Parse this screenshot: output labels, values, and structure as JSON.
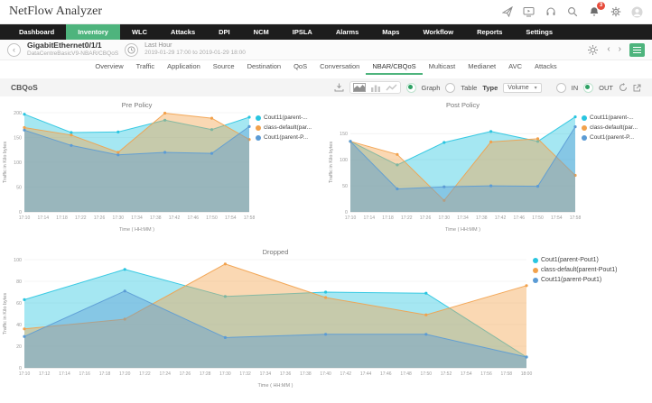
{
  "header": {
    "app_title": "NetFlow Analyzer",
    "notification_badge": "3",
    "icons": [
      "send-icon",
      "video-tour-icon",
      "support-icon",
      "search-icon",
      "notifications-icon",
      "settings-icon",
      "user-avatar"
    ]
  },
  "nav": {
    "items": [
      "Dashboard",
      "Inventory",
      "WLC",
      "Attacks",
      "DPI",
      "NCM",
      "IPSLA",
      "Alarms",
      "Maps",
      "Workflow",
      "Reports",
      "Settings"
    ],
    "active": "Inventory"
  },
  "device_bar": {
    "device_name": "GigabitEthernet0/1/1",
    "device_path": "DataCentreBasicV9-NBAR/CBQoS",
    "time_range_label": "Last Hour",
    "time_range_value": "2019-01-29 17:00 to 2019-01-29 18:00",
    "icons": [
      "back-icon",
      "clock-icon",
      "alarm-icon",
      "chevron-left-icon",
      "chevron-right-icon",
      "menu-icon"
    ]
  },
  "tabs": {
    "items": [
      "Overview",
      "Traffic",
      "Application",
      "Source",
      "Destination",
      "QoS",
      "Conversation",
      "NBAR/CBQoS",
      "Multicast",
      "Medianet",
      "AVC",
      "Attacks"
    ],
    "active": "NBAR/CBQoS"
  },
  "toolbar": {
    "section_title": "CBQoS",
    "graph_label": "Graph",
    "table_label": "Table",
    "type_label": "Type",
    "type_value": "Volume",
    "in_label": "IN",
    "out_label": "OUT",
    "selected_view": "Graph",
    "selected_direction": "OUT",
    "selected_chart_type": "area",
    "icons": [
      "export-icon",
      "area-chart-icon",
      "bar-chart-icon",
      "line-chart-icon",
      "refresh-icon",
      "expand-icon"
    ]
  },
  "colors": {
    "accent_green": "#4eb47d",
    "radio_green": "#2ea164",
    "badge_red": "#e74c3c",
    "nav_bg": "#1d1d1d",
    "series_cyan": "#29c5e0",
    "series_orange": "#f2a14b",
    "series_blue": "#5b9bd5"
  },
  "chart_data": [
    {
      "type": "area",
      "title": "Pre Policy",
      "xlabel": "Time ( HH:MM )",
      "ylabel": "Traffic in Kilo bytes",
      "ylim": [
        0,
        200
      ],
      "yticks": [
        0,
        50,
        100,
        150,
        200
      ],
      "grid": true,
      "legend_position": "right",
      "xticks": [
        "17:10",
        "17:14",
        "17:18",
        "17:22",
        "17:26",
        "17:30",
        "17:34",
        "17:38",
        "17:42",
        "17:46",
        "17:50",
        "17:54",
        "17:58"
      ],
      "x_range": [
        0,
        48
      ],
      "x_minutes": [
        0,
        10,
        20,
        30,
        40,
        48
      ],
      "series": [
        {
          "name": "Cout11(parent-...",
          "color": "#29c5e0",
          "values": [
            197,
            160,
            161,
            185,
            166,
            191
          ]
        },
        {
          "name": "class-default(par...",
          "color": "#f2a14b",
          "values": [
            170,
            155,
            120,
            199,
            189,
            146
          ]
        },
        {
          "name": "Cout1(parent-P...",
          "color": "#5b9bd5",
          "values": [
            165,
            134,
            115,
            120,
            118,
            172
          ]
        }
      ]
    },
    {
      "type": "area",
      "title": "Post Policy",
      "xlabel": "Time ( HH:MM )",
      "ylabel": "Traffic in Kilo bytes",
      "ylim": [
        0,
        190
      ],
      "yticks": [
        0,
        50,
        100,
        150
      ],
      "grid": true,
      "legend_position": "right",
      "xticks": [
        "17:10",
        "17:14",
        "17:18",
        "17:22",
        "17:26",
        "17:30",
        "17:34",
        "17:38",
        "17:42",
        "17:46",
        "17:50",
        "17:54",
        "17:58"
      ],
      "x_range": [
        0,
        48
      ],
      "x_minutes": [
        0,
        10,
        20,
        30,
        40,
        48
      ],
      "series": [
        {
          "name": "Cout11(parent-...",
          "color": "#29c5e0",
          "values": [
            135,
            90,
            133,
            154,
            135,
            182
          ]
        },
        {
          "name": "class-default(par...",
          "color": "#f2a14b",
          "values": [
            135,
            110,
            22,
            134,
            140,
            70
          ]
        },
        {
          "name": "Cout1(parent-P...",
          "color": "#5b9bd5",
          "values": [
            135,
            44,
            48,
            50,
            49,
            163
          ]
        }
      ]
    },
    {
      "type": "area",
      "title": "Dropped",
      "xlabel": "Time ( HH:MM )",
      "ylabel": "Traffic in Kilo bytes",
      "ylim": [
        0,
        100
      ],
      "yticks": [
        0,
        20,
        40,
        60,
        80,
        100
      ],
      "grid": true,
      "legend_position": "right",
      "xticks": [
        "17:10",
        "17:12",
        "17:14",
        "17:16",
        "17:18",
        "17:20",
        "17:22",
        "17:24",
        "17:26",
        "17:28",
        "17:30",
        "17:32",
        "17:34",
        "17:36",
        "17:38",
        "17:40",
        "17:42",
        "17:44",
        "17:46",
        "17:48",
        "17:50",
        "17:52",
        "17:54",
        "17:56",
        "17:58",
        "18:00"
      ],
      "x_range": [
        0,
        50
      ],
      "x_minutes": [
        0,
        10,
        20,
        30,
        40,
        50
      ],
      "series": [
        {
          "name": "Cout1(parent-Pout1)",
          "color": "#29c5e0",
          "values": [
            63,
            91,
            66,
            70,
            69,
            10
          ]
        },
        {
          "name": "class-default(parent-Pout1)",
          "color": "#f2a14b",
          "values": [
            36,
            45,
            96,
            65,
            49,
            76
          ]
        },
        {
          "name": "Cout11(parent-Pout1)",
          "color": "#5b9bd5",
          "values": [
            29,
            71,
            28,
            31,
            31,
            10
          ]
        }
      ]
    }
  ]
}
